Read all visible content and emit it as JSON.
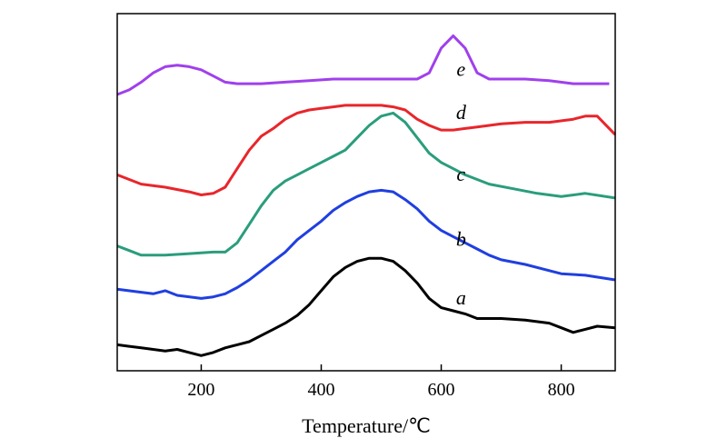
{
  "chart_data": {
    "type": "line",
    "title": "",
    "xlabel": "Temperature/℃",
    "ylabel": "",
    "xlim": [
      60,
      890
    ],
    "ylim": [
      0,
      100
    ],
    "x_ticks": [
      200,
      400,
      600,
      800
    ],
    "y_ticks_shown": false,
    "grid": false,
    "series": [
      {
        "name": "a",
        "color": "#000000",
        "label_at": [
          633,
          17
        ],
        "points": [
          [
            60,
            4
          ],
          [
            80,
            3.5
          ],
          [
            100,
            3
          ],
          [
            120,
            2.5
          ],
          [
            140,
            2
          ],
          [
            160,
            2.5
          ],
          [
            180,
            1.5
          ],
          [
            200,
            0.5
          ],
          [
            220,
            1.5
          ],
          [
            240,
            3
          ],
          [
            260,
            4
          ],
          [
            280,
            5
          ],
          [
            300,
            7
          ],
          [
            320,
            9
          ],
          [
            340,
            11
          ],
          [
            360,
            13.5
          ],
          [
            380,
            17
          ],
          [
            400,
            21.5
          ],
          [
            420,
            26
          ],
          [
            440,
            29
          ],
          [
            460,
            31
          ],
          [
            480,
            32
          ],
          [
            500,
            32
          ],
          [
            520,
            31
          ],
          [
            540,
            28
          ],
          [
            560,
            24
          ],
          [
            580,
            19
          ],
          [
            600,
            16
          ],
          [
            620,
            15
          ],
          [
            640,
            14
          ],
          [
            660,
            12.5
          ],
          [
            700,
            12.5
          ],
          [
            740,
            12
          ],
          [
            780,
            11
          ],
          [
            800,
            9.5
          ],
          [
            820,
            8
          ],
          [
            840,
            9
          ],
          [
            860,
            10
          ],
          [
            890,
            9.5
          ]
        ]
      },
      {
        "name": "b",
        "color": "#1f3fe0",
        "label_at": [
          633,
          36
        ],
        "points": [
          [
            60,
            22
          ],
          [
            100,
            21
          ],
          [
            120,
            20.5
          ],
          [
            140,
            21.5
          ],
          [
            160,
            20
          ],
          [
            200,
            19
          ],
          [
            220,
            19.5
          ],
          [
            240,
            20.5
          ],
          [
            260,
            22.5
          ],
          [
            280,
            25
          ],
          [
            300,
            28
          ],
          [
            320,
            31
          ],
          [
            340,
            34
          ],
          [
            360,
            38
          ],
          [
            380,
            41
          ],
          [
            400,
            44
          ],
          [
            420,
            47.5
          ],
          [
            440,
            50
          ],
          [
            460,
            52
          ],
          [
            480,
            53.5
          ],
          [
            500,
            54
          ],
          [
            520,
            53.5
          ],
          [
            540,
            51
          ],
          [
            560,
            48
          ],
          [
            580,
            44
          ],
          [
            600,
            41
          ],
          [
            620,
            39
          ],
          [
            640,
            37
          ],
          [
            660,
            35
          ],
          [
            680,
            33
          ],
          [
            700,
            31.5
          ],
          [
            740,
            30
          ],
          [
            780,
            28
          ],
          [
            800,
            27
          ],
          [
            840,
            26.5
          ],
          [
            890,
            25
          ]
        ]
      },
      {
        "name": "c",
        "color": "#2a9d7c",
        "label_at": [
          633,
          57
        ],
        "points": [
          [
            60,
            36
          ],
          [
            80,
            34.5
          ],
          [
            100,
            33
          ],
          [
            140,
            33
          ],
          [
            180,
            33.5
          ],
          [
            220,
            34
          ],
          [
            240,
            34
          ],
          [
            260,
            37
          ],
          [
            280,
            43
          ],
          [
            300,
            49
          ],
          [
            320,
            54
          ],
          [
            340,
            57
          ],
          [
            360,
            59
          ],
          [
            380,
            61
          ],
          [
            400,
            63
          ],
          [
            420,
            65
          ],
          [
            440,
            67
          ],
          [
            460,
            71
          ],
          [
            480,
            75
          ],
          [
            500,
            78
          ],
          [
            520,
            79
          ],
          [
            540,
            76
          ],
          [
            560,
            71
          ],
          [
            580,
            66
          ],
          [
            600,
            63
          ],
          [
            620,
            61
          ],
          [
            640,
            59
          ],
          [
            660,
            57.5
          ],
          [
            680,
            56
          ],
          [
            720,
            54.5
          ],
          [
            760,
            53
          ],
          [
            800,
            52
          ],
          [
            840,
            53
          ],
          [
            890,
            51.5
          ]
        ]
      },
      {
        "name": "d",
        "color": "#e8262b",
        "label_at": [
          633,
          77
        ],
        "points": [
          [
            60,
            59
          ],
          [
            80,
            57.5
          ],
          [
            100,
            56
          ],
          [
            140,
            55
          ],
          [
            180,
            53.5
          ],
          [
            200,
            52.5
          ],
          [
            220,
            53
          ],
          [
            240,
            55
          ],
          [
            260,
            61
          ],
          [
            280,
            67
          ],
          [
            300,
            71.5
          ],
          [
            320,
            74
          ],
          [
            340,
            77
          ],
          [
            360,
            79
          ],
          [
            380,
            80
          ],
          [
            400,
            80.5
          ],
          [
            420,
            81
          ],
          [
            440,
            81.5
          ],
          [
            460,
            81.5
          ],
          [
            480,
            81.5
          ],
          [
            500,
            81.5
          ],
          [
            520,
            81
          ],
          [
            540,
            80
          ],
          [
            560,
            77
          ],
          [
            580,
            75
          ],
          [
            600,
            73.5
          ],
          [
            620,
            73.5
          ],
          [
            640,
            74
          ],
          [
            660,
            74.5
          ],
          [
            700,
            75.5
          ],
          [
            740,
            76
          ],
          [
            780,
            76
          ],
          [
            820,
            77
          ],
          [
            840,
            78
          ],
          [
            860,
            78
          ],
          [
            890,
            72
          ]
        ]
      },
      {
        "name": "e",
        "color": "#a040ec",
        "label_at": [
          633,
          91
        ],
        "points": [
          [
            60,
            85
          ],
          [
            80,
            86.5
          ],
          [
            100,
            89
          ],
          [
            120,
            92
          ],
          [
            140,
            94
          ],
          [
            160,
            94.5
          ],
          [
            180,
            94
          ],
          [
            200,
            93
          ],
          [
            220,
            91
          ],
          [
            240,
            89
          ],
          [
            260,
            88.5
          ],
          [
            300,
            88.5
          ],
          [
            340,
            89
          ],
          [
            380,
            89.5
          ],
          [
            420,
            90
          ],
          [
            460,
            90
          ],
          [
            500,
            90
          ],
          [
            540,
            90
          ],
          [
            560,
            90
          ],
          [
            580,
            92
          ],
          [
            600,
            100
          ],
          [
            620,
            104
          ],
          [
            640,
            100
          ],
          [
            660,
            92
          ],
          [
            680,
            90
          ],
          [
            700,
            90
          ],
          [
            740,
            90
          ],
          [
            780,
            89.5
          ],
          [
            820,
            88.5
          ],
          [
            860,
            88.5
          ],
          [
            880,
            88.5
          ]
        ]
      }
    ]
  }
}
